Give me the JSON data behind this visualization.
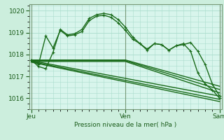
{
  "background_color": "#cceedd",
  "plot_bg_color": "#d8f5ec",
  "grid_color": "#aaddcc",
  "line_color": "#1a6b1a",
  "title": "Pression niveau de la mer( hPa )",
  "ylim": [
    1015.5,
    1020.3
  ],
  "yticks": [
    1016,
    1017,
    1018,
    1019,
    1020
  ],
  "xtick_labels": [
    "Jeu",
    "Ven",
    "Sam"
  ],
  "xtick_positions": [
    0,
    13,
    26
  ],
  "series": [
    {
      "x": [
        0,
        1,
        2,
        3,
        4,
        5,
        6,
        7,
        8,
        9,
        10,
        11,
        12,
        13,
        14,
        15,
        16,
        17,
        18,
        19,
        20,
        21,
        22,
        23,
        24,
        25,
        26
      ],
      "y": [
        1017.75,
        1017.55,
        1018.85,
        1018.3,
        1019.1,
        1018.85,
        1018.9,
        1019.05,
        1019.55,
        1019.75,
        1019.8,
        1019.7,
        1019.45,
        1019.1,
        1018.7,
        1018.5,
        1018.2,
        1018.5,
        1018.45,
        1018.2,
        1018.4,
        1018.45,
        1018.55,
        1018.15,
        1017.55,
        1016.65,
        1016.1
      ],
      "marker": true,
      "lw": 1.0
    },
    {
      "x": [
        0,
        1,
        2,
        3,
        4,
        5,
        6,
        7,
        8,
        9,
        10,
        11,
        12,
        13,
        14,
        15,
        16,
        17,
        18,
        19,
        20,
        21,
        22,
        23,
        24,
        25,
        26
      ],
      "y": [
        1017.75,
        1017.45,
        1017.35,
        1018.1,
        1019.15,
        1018.9,
        1018.95,
        1019.15,
        1019.65,
        1019.82,
        1019.88,
        1019.82,
        1019.6,
        1019.25,
        1018.8,
        1018.5,
        1018.25,
        1018.5,
        1018.45,
        1018.2,
        1018.4,
        1018.5,
        1018.15,
        1017.15,
        1016.65,
        1016.38,
        1016.0
      ],
      "marker": true,
      "lw": 1.0
    },
    {
      "x": [
        0,
        13,
        26
      ],
      "y": [
        1017.75,
        1017.75,
        1016.55
      ],
      "marker": false,
      "lw": 1.0
    },
    {
      "x": [
        0,
        13,
        26
      ],
      "y": [
        1017.72,
        1017.72,
        1016.4
      ],
      "marker": false,
      "lw": 1.0
    },
    {
      "x": [
        0,
        13,
        26
      ],
      "y": [
        1017.68,
        1017.68,
        1016.25
      ],
      "marker": false,
      "lw": 1.0
    },
    {
      "x": [
        0,
        26
      ],
      "y": [
        1017.72,
        1016.1
      ],
      "marker": false,
      "lw": 1.0
    },
    {
      "x": [
        0,
        26
      ],
      "y": [
        1017.68,
        1015.95
      ],
      "marker": false,
      "lw": 1.0
    },
    {
      "x": [
        0,
        26
      ],
      "y": [
        1017.65,
        1015.85
      ],
      "marker": false,
      "lw": 1.0
    }
  ],
  "vlines": [
    0,
    13,
    26
  ]
}
